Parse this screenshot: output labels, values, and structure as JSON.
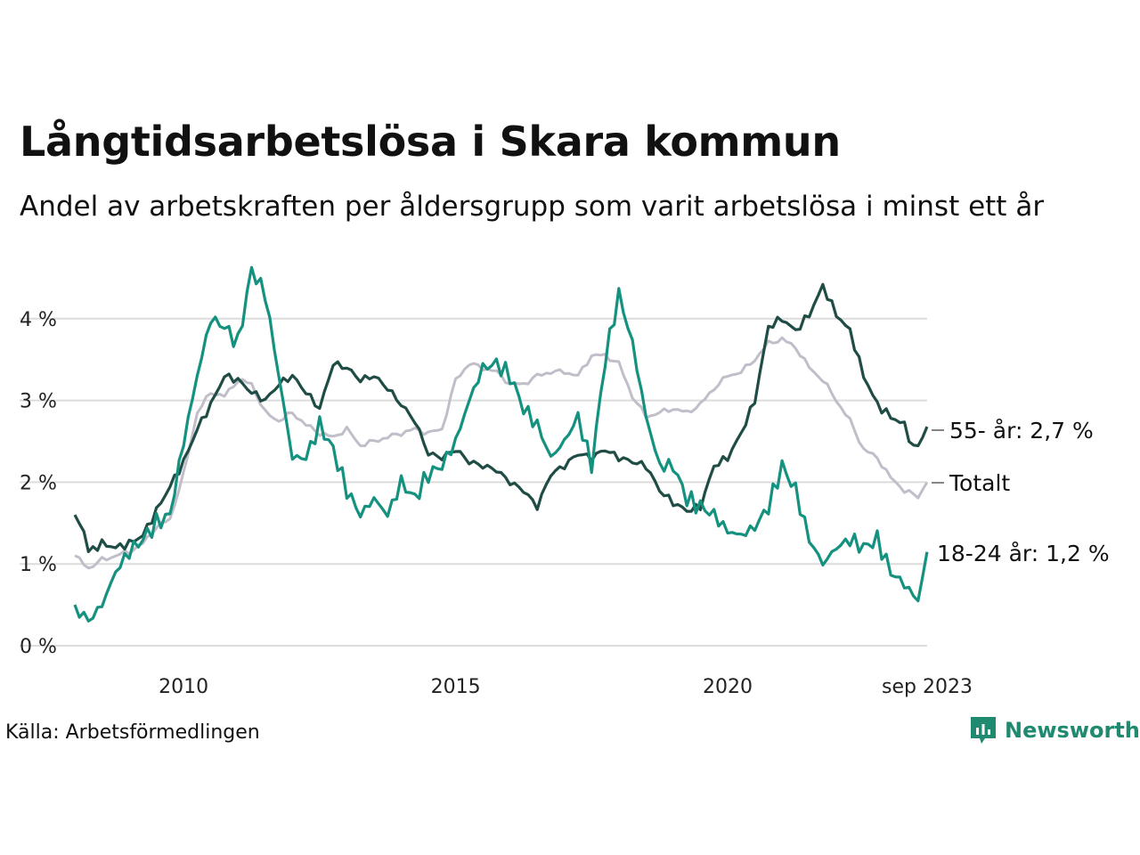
{
  "title": "Långtidsarbetslösa i Skara kommun",
  "subtitle": "Andel av arbetskraften per åldersgrupp som varit arbetslösa i minst ett år",
  "source": "Källa: Arbetsförmedlingen",
  "brand": "Newsworthy",
  "colors": {
    "totalt": "#c2bec9",
    "age55": "#1f4d45",
    "age18_24": "#14917f",
    "grid": "#dcdcdc",
    "brand": "#1f8a70"
  },
  "chart_data": {
    "type": "line",
    "x_start": 2008.0,
    "x_end": 2023.667,
    "step_years": 0.08333,
    "ylim": [
      0,
      4.6
    ],
    "y_ticks": [
      0,
      1,
      2,
      3,
      4
    ],
    "y_tick_labels": [
      "0 %",
      "1 %",
      "2 %",
      "3 %",
      "4 %"
    ],
    "x_ticks": [
      2010,
      2015,
      2020,
      2023.667
    ],
    "x_tick_labels": [
      "2010",
      "2015",
      "2020",
      "sep 2023"
    ],
    "grid": true,
    "series": [
      {
        "name": "Totalt",
        "label": "Totalt",
        "color_key": "totalt",
        "anchors": [
          [
            2008.0,
            1.1
          ],
          [
            2008.25,
            0.95
          ],
          [
            2008.5,
            1.05
          ],
          [
            2009.0,
            1.15
          ],
          [
            2009.25,
            1.25
          ],
          [
            2009.5,
            1.45
          ],
          [
            2009.75,
            1.55
          ],
          [
            2010.0,
            2.1
          ],
          [
            2010.25,
            2.85
          ],
          [
            2010.5,
            3.1
          ],
          [
            2010.75,
            3.05
          ],
          [
            2011.0,
            3.25
          ],
          [
            2011.25,
            3.2
          ],
          [
            2011.5,
            2.85
          ],
          [
            2011.75,
            2.75
          ],
          [
            2012.0,
            2.85
          ],
          [
            2012.25,
            2.7
          ],
          [
            2012.5,
            2.6
          ],
          [
            2012.75,
            2.55
          ],
          [
            2013.0,
            2.65
          ],
          [
            2013.25,
            2.45
          ],
          [
            2013.5,
            2.5
          ],
          [
            2013.75,
            2.55
          ],
          [
            2014.0,
            2.6
          ],
          [
            2014.25,
            2.65
          ],
          [
            2014.5,
            2.6
          ],
          [
            2014.75,
            2.65
          ],
          [
            2015.0,
            3.25
          ],
          [
            2015.25,
            3.45
          ],
          [
            2015.5,
            3.4
          ],
          [
            2015.75,
            3.35
          ],
          [
            2016.0,
            3.2
          ],
          [
            2016.25,
            3.2
          ],
          [
            2016.5,
            3.3
          ],
          [
            2016.75,
            3.35
          ],
          [
            2017.0,
            3.35
          ],
          [
            2017.25,
            3.3
          ],
          [
            2017.5,
            3.55
          ],
          [
            2017.75,
            3.55
          ],
          [
            2018.0,
            3.45
          ],
          [
            2018.25,
            3.05
          ],
          [
            2018.5,
            2.8
          ],
          [
            2018.75,
            2.85
          ],
          [
            2019.0,
            2.9
          ],
          [
            2019.25,
            2.85
          ],
          [
            2019.5,
            2.95
          ],
          [
            2019.75,
            3.15
          ],
          [
            2020.0,
            3.3
          ],
          [
            2020.25,
            3.35
          ],
          [
            2020.5,
            3.5
          ],
          [
            2020.75,
            3.7
          ],
          [
            2021.0,
            3.75
          ],
          [
            2021.25,
            3.65
          ],
          [
            2021.5,
            3.4
          ],
          [
            2021.75,
            3.25
          ],
          [
            2022.0,
            3.0
          ],
          [
            2022.25,
            2.75
          ],
          [
            2022.5,
            2.4
          ],
          [
            2022.75,
            2.3
          ],
          [
            2023.0,
            2.05
          ],
          [
            2023.25,
            1.9
          ],
          [
            2023.5,
            1.82
          ],
          [
            2023.667,
            2.0
          ]
        ]
      },
      {
        "name": "55- år",
        "label": "55- år: 2,7 %",
        "color_key": "age55",
        "anchors": [
          [
            2008.0,
            1.6
          ],
          [
            2008.15,
            1.45
          ],
          [
            2008.25,
            1.15
          ],
          [
            2008.5,
            1.25
          ],
          [
            2008.75,
            1.2
          ],
          [
            2009.0,
            1.25
          ],
          [
            2009.25,
            1.35
          ],
          [
            2009.5,
            1.65
          ],
          [
            2009.75,
            1.95
          ],
          [
            2010.0,
            2.25
          ],
          [
            2010.25,
            2.65
          ],
          [
            2010.5,
            2.95
          ],
          [
            2010.75,
            3.3
          ],
          [
            2011.0,
            3.25
          ],
          [
            2011.25,
            3.1
          ],
          [
            2011.5,
            3.0
          ],
          [
            2011.75,
            3.2
          ],
          [
            2012.0,
            3.3
          ],
          [
            2012.25,
            3.1
          ],
          [
            2012.5,
            2.9
          ],
          [
            2012.75,
            3.45
          ],
          [
            2013.0,
            3.4
          ],
          [
            2013.25,
            3.25
          ],
          [
            2013.5,
            3.3
          ],
          [
            2013.75,
            3.15
          ],
          [
            2014.0,
            2.95
          ],
          [
            2014.25,
            2.75
          ],
          [
            2014.5,
            2.35
          ],
          [
            2014.75,
            2.3
          ],
          [
            2015.0,
            2.4
          ],
          [
            2015.25,
            2.25
          ],
          [
            2015.5,
            2.2
          ],
          [
            2015.75,
            2.15
          ],
          [
            2016.0,
            2.0
          ],
          [
            2016.25,
            1.9
          ],
          [
            2016.5,
            1.7
          ],
          [
            2016.75,
            2.1
          ],
          [
            2017.0,
            2.2
          ],
          [
            2017.25,
            2.35
          ],
          [
            2017.5,
            2.3
          ],
          [
            2017.75,
            2.4
          ],
          [
            2018.0,
            2.3
          ],
          [
            2018.25,
            2.25
          ],
          [
            2018.5,
            2.2
          ],
          [
            2018.75,
            1.9
          ],
          [
            2019.0,
            1.75
          ],
          [
            2019.25,
            1.65
          ],
          [
            2019.5,
            1.7
          ],
          [
            2019.75,
            2.2
          ],
          [
            2020.0,
            2.3
          ],
          [
            2020.25,
            2.6
          ],
          [
            2020.5,
            3.0
          ],
          [
            2020.75,
            3.9
          ],
          [
            2021.0,
            4.0
          ],
          [
            2021.25,
            3.85
          ],
          [
            2021.5,
            4.05
          ],
          [
            2021.75,
            4.4
          ],
          [
            2022.0,
            4.05
          ],
          [
            2022.25,
            3.85
          ],
          [
            2022.5,
            3.3
          ],
          [
            2022.75,
            2.95
          ],
          [
            2023.0,
            2.8
          ],
          [
            2023.25,
            2.7
          ],
          [
            2023.42,
            2.4
          ],
          [
            2023.55,
            2.5
          ],
          [
            2023.667,
            2.68
          ]
        ]
      },
      {
        "name": "18-24 år",
        "label": "18-24 år: 1,2 %",
        "color_key": "age18_24",
        "anchors": [
          [
            2008.0,
            0.5
          ],
          [
            2008.25,
            0.3
          ],
          [
            2008.5,
            0.5
          ],
          [
            2008.75,
            0.9
          ],
          [
            2009.0,
            1.15
          ],
          [
            2009.25,
            1.3
          ],
          [
            2009.5,
            1.5
          ],
          [
            2009.75,
            1.6
          ],
          [
            2010.0,
            2.5
          ],
          [
            2010.25,
            3.3
          ],
          [
            2010.5,
            4.0
          ],
          [
            2010.75,
            3.9
          ],
          [
            2011.0,
            3.7
          ],
          [
            2011.25,
            4.6
          ],
          [
            2011.5,
            4.3
          ],
          [
            2011.75,
            3.3
          ],
          [
            2012.0,
            2.3
          ],
          [
            2012.25,
            2.3
          ],
          [
            2012.5,
            2.7
          ],
          [
            2012.75,
            2.4
          ],
          [
            2013.0,
            1.9
          ],
          [
            2013.25,
            1.6
          ],
          [
            2013.5,
            1.8
          ],
          [
            2013.75,
            1.6
          ],
          [
            2014.0,
            2.0
          ],
          [
            2014.25,
            1.8
          ],
          [
            2014.5,
            2.1
          ],
          [
            2014.75,
            2.2
          ],
          [
            2015.0,
            2.5
          ],
          [
            2015.25,
            3.0
          ],
          [
            2015.5,
            3.4
          ],
          [
            2015.75,
            3.45
          ],
          [
            2016.0,
            3.3
          ],
          [
            2016.25,
            2.9
          ],
          [
            2016.5,
            2.7
          ],
          [
            2016.75,
            2.3
          ],
          [
            2017.0,
            2.5
          ],
          [
            2017.25,
            2.8
          ],
          [
            2017.5,
            2.2
          ],
          [
            2017.75,
            3.5
          ],
          [
            2018.0,
            4.3
          ],
          [
            2018.25,
            3.7
          ],
          [
            2018.5,
            2.8
          ],
          [
            2018.75,
            2.2
          ],
          [
            2019.0,
            2.2
          ],
          [
            2019.25,
            1.8
          ],
          [
            2019.5,
            1.7
          ],
          [
            2019.75,
            1.6
          ],
          [
            2020.0,
            1.4
          ],
          [
            2020.25,
            1.35
          ],
          [
            2020.5,
            1.45
          ],
          [
            2020.75,
            1.7
          ],
          [
            2021.0,
            2.2
          ],
          [
            2021.25,
            1.9
          ],
          [
            2021.5,
            1.3
          ],
          [
            2021.75,
            1.0
          ],
          [
            2022.0,
            1.2
          ],
          [
            2022.25,
            1.3
          ],
          [
            2022.5,
            1.2
          ],
          [
            2022.75,
            1.3
          ],
          [
            2023.0,
            0.9
          ],
          [
            2023.25,
            0.75
          ],
          [
            2023.5,
            0.55
          ],
          [
            2023.667,
            1.15
          ]
        ]
      }
    ]
  }
}
